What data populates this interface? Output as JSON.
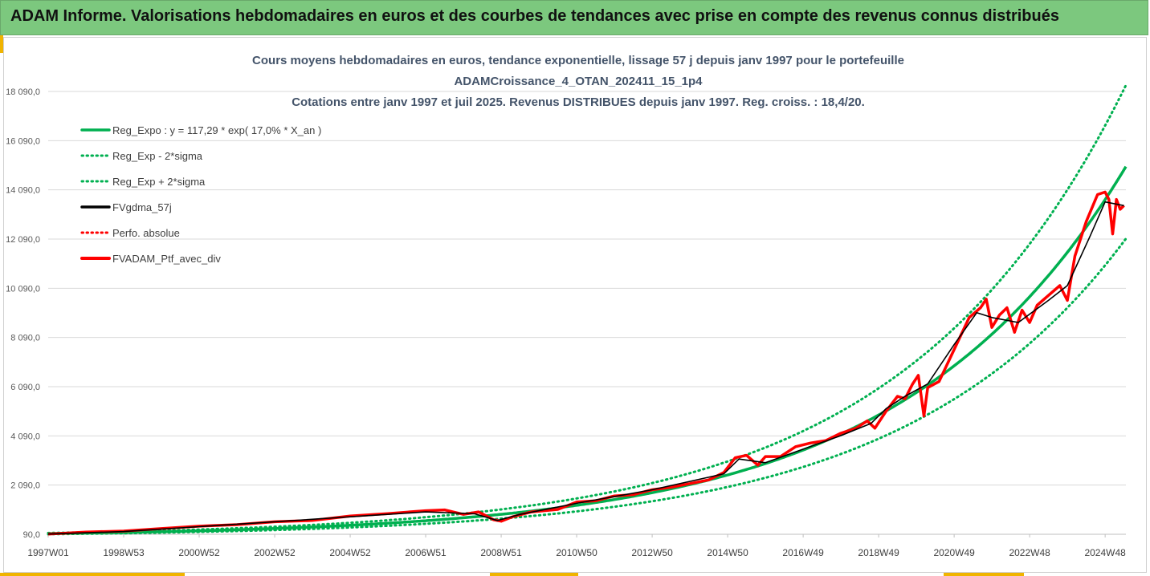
{
  "header": {
    "text": "ADAM Informe. Valorisations hebdomadaires en euros et des courbes de tendances avec prise en compte des revenus connus distribués"
  },
  "colors": {
    "header_bg": "#7cc87e",
    "accent": "#f0b400",
    "green": "#00b050",
    "black": "#000000",
    "red": "#ff0000"
  },
  "chart_data": {
    "type": "line",
    "title_lines": [
      "Cours moyens hebdomadaires  en euros, tendance exponentielle, lissage 57 j depuis janv 1997 pour le portefeuille",
      "ADAMCroissance_4_OTAN_202411_15_1p4",
      "Cotations  entre janv 1997 et juil 2025. Revenus DISTRIBUES depuis janv 1997. Reg. croiss. : 18,4/20."
    ],
    "ylim": [
      90,
      18090
    ],
    "yticks": [
      "90,0",
      "2 090,0",
      "4 090,0",
      "6 090,0",
      "8 090,0",
      "10 090,0",
      "12 090,0",
      "14 090,0",
      "16 090,0",
      "18 090,0"
    ],
    "ytick_values": [
      90,
      2090,
      4090,
      6090,
      8090,
      10090,
      12090,
      14090,
      16090,
      18090
    ],
    "xlim": [
      1997.0,
      2025.55
    ],
    "xticks": [
      "1997W01",
      "1998W53",
      "2000W52",
      "2002W52",
      "2004W52",
      "2006W51",
      "2008W51",
      "2010W50",
      "2012W50",
      "2014W50",
      "2016W49",
      "2018W49",
      "2020W49",
      "2022W48",
      "2024W48"
    ],
    "xtick_values": [
      1997.0,
      1999.0,
      2001.0,
      2003.0,
      2005.0,
      2007.0,
      2009.0,
      2011.0,
      2013.0,
      2015.0,
      2017.0,
      2019.0,
      2021.0,
      2023.0,
      2025.0
    ],
    "grid": "horizontal",
    "legend_position": "top-left",
    "regression": {
      "a": 117.29,
      "rate": 0.17,
      "sigma_up_factor": 1.22,
      "sigma_down_factor": 0.805
    },
    "series": [
      {
        "name": "Reg_Expo : y = 117,29 * exp( 17,0% *  X_an )",
        "style": "solid-thick",
        "color": "#00b050"
      },
      {
        "name": "Reg_Exp - 2*sigma",
        "style": "dotted",
        "color": "#00b050"
      },
      {
        "name": "Reg_Exp + 2*sigma",
        "style": "dotted",
        "color": "#00b050"
      },
      {
        "name": "FVgdma_57j",
        "style": "solid",
        "color": "#000000",
        "x": [
          1997.0,
          1999.0,
          2001.0,
          2003.0,
          2005.0,
          2007.0,
          2008.3,
          2008.9,
          2009.5,
          2011.0,
          2013.0,
          2014.9,
          2015.3,
          2016.0,
          2017.0,
          2018.0,
          2018.8,
          2019.2,
          2019.7,
          2020.3,
          2021.0,
          2021.6,
          2022.0,
          2022.7,
          2023.5,
          2024.0,
          2024.6,
          2025.0,
          2025.5
        ],
        "values": [
          100,
          200,
          400,
          600,
          800,
          1000,
          920,
          650,
          900,
          1350,
          1900,
          2550,
          3150,
          3000,
          3550,
          4100,
          4600,
          5200,
          5700,
          6200,
          7800,
          9100,
          8900,
          8700,
          9600,
          10200,
          12200,
          13600,
          13450
        ]
      },
      {
        "name": "Perfo. absolue",
        "style": "dotted",
        "color": "#ff0000"
      },
      {
        "name": "FVADAM_Ptf_avec_div",
        "style": "solid-thick",
        "color": "#ff0000",
        "x": [
          1997.0,
          1998.0,
          1999.0,
          2000.0,
          2001.0,
          2002.0,
          2003.0,
          2004.0,
          2005.0,
          2006.0,
          2007.0,
          2007.5,
          2008.0,
          2008.4,
          2008.8,
          2009.0,
          2009.3,
          2009.8,
          2010.5,
          2011.0,
          2011.5,
          2012.0,
          2012.5,
          2013.0,
          2013.5,
          2014.0,
          2014.5,
          2014.9,
          2015.2,
          2015.5,
          2015.8,
          2016.0,
          2016.4,
          2016.8,
          2017.2,
          2017.6,
          2018.0,
          2018.4,
          2018.7,
          2018.9,
          2019.2,
          2019.5,
          2019.7,
          2019.9,
          2020.05,
          2020.2,
          2020.3,
          2020.6,
          2021.0,
          2021.4,
          2021.7,
          2021.85,
          2022.0,
          2022.2,
          2022.4,
          2022.6,
          2022.8,
          2023.0,
          2023.2,
          2023.5,
          2023.8,
          2024.0,
          2024.2,
          2024.5,
          2024.8,
          2025.0,
          2025.1,
          2025.2,
          2025.3,
          2025.4,
          2025.5
        ],
        "values": [
          100,
          180,
          220,
          320,
          420,
          480,
          600,
          650,
          830,
          930,
          1050,
          1080,
          900,
          1000,
          680,
          620,
          800,
          1000,
          1100,
          1400,
          1450,
          1650,
          1700,
          1900,
          2000,
          2150,
          2300,
          2600,
          3200,
          3300,
          2900,
          3250,
          3250,
          3650,
          3800,
          3900,
          4200,
          4400,
          4700,
          4400,
          5100,
          5700,
          5600,
          6200,
          6550,
          4900,
          6050,
          6300,
          7600,
          8900,
          9300,
          9650,
          8500,
          9000,
          9300,
          8300,
          9200,
          8700,
          9400,
          9800,
          10200,
          9600,
          11400,
          12800,
          13900,
          14000,
          13700,
          12300,
          13700,
          13300,
          13450
        ]
      }
    ]
  }
}
